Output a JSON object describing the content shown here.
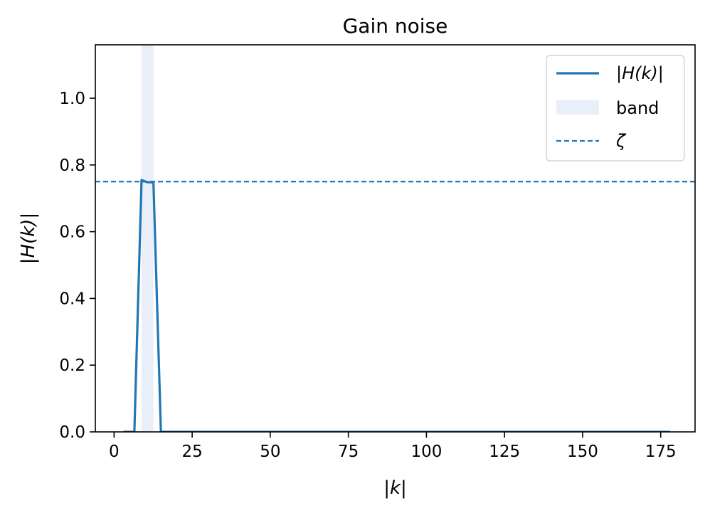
{
  "chart_data": {
    "type": "line",
    "title": "Gain noise",
    "xlabel": "|k|",
    "ylabel": "|H(k)|",
    "xlim": [
      -6,
      186
    ],
    "ylim": [
      0,
      1.16
    ],
    "x_ticks": [
      0,
      25,
      50,
      75,
      100,
      125,
      150,
      175
    ],
    "y_ticks": [
      0.0,
      0.2,
      0.4,
      0.6,
      0.8,
      1.0
    ],
    "x_tick_labels": [
      "0",
      "25",
      "50",
      "75",
      "100",
      "125",
      "150",
      "175"
    ],
    "y_tick_labels": [
      "0.0",
      "0.2",
      "0.4",
      "0.6",
      "0.8",
      "1.0"
    ],
    "grid": false,
    "legend_position": "upper right",
    "band": {
      "label": "band",
      "x_range": [
        8.8,
        12.6
      ],
      "color": "#e8eff8"
    },
    "threshold": {
      "label": "ζ",
      "y": 0.75,
      "color": "#1f77b4",
      "style": "dashed"
    },
    "series": [
      {
        "name": "|H(k)|",
        "color": "#1f77b4",
        "x": [
          3,
          6.5,
          8.8,
          10.7,
          12.6,
          15,
          30,
          60,
          100,
          140,
          178
        ],
        "y": [
          0.0,
          0.0,
          0.755,
          0.748,
          0.748,
          0.0,
          0.0,
          0.0,
          0.0,
          0.0,
          0.0
        ]
      }
    ]
  }
}
